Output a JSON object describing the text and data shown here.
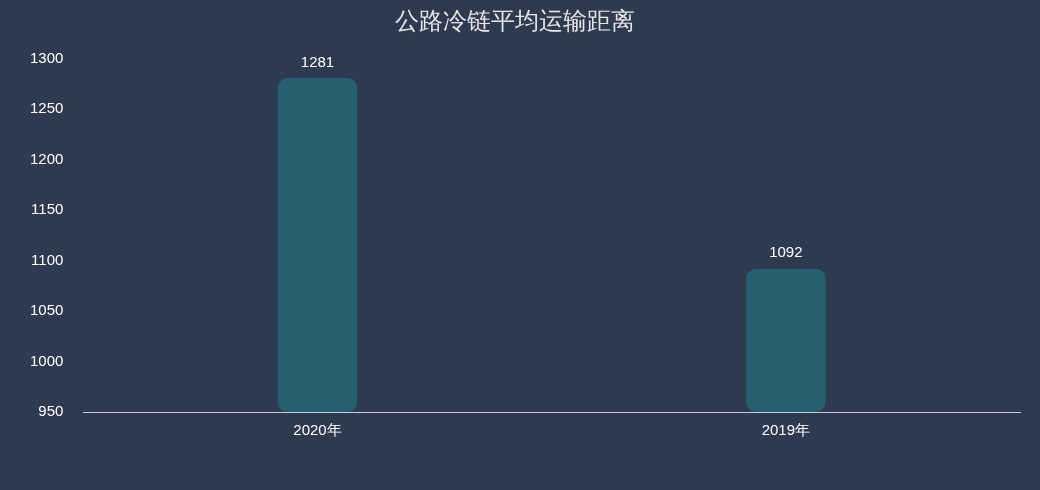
{
  "chart_data": {
    "type": "bar",
    "title": "公路冷链平均运输距离",
    "categories": [
      "2020年",
      "2019年"
    ],
    "values": [
      1281,
      1092
    ],
    "color": "#265f6e",
    "ylim": [
      950,
      1300
    ],
    "yticks": [
      950,
      1000,
      1050,
      1100,
      1150,
      1200,
      1250,
      1300
    ],
    "grid": false,
    "legend": false,
    "data_labels": true
  }
}
